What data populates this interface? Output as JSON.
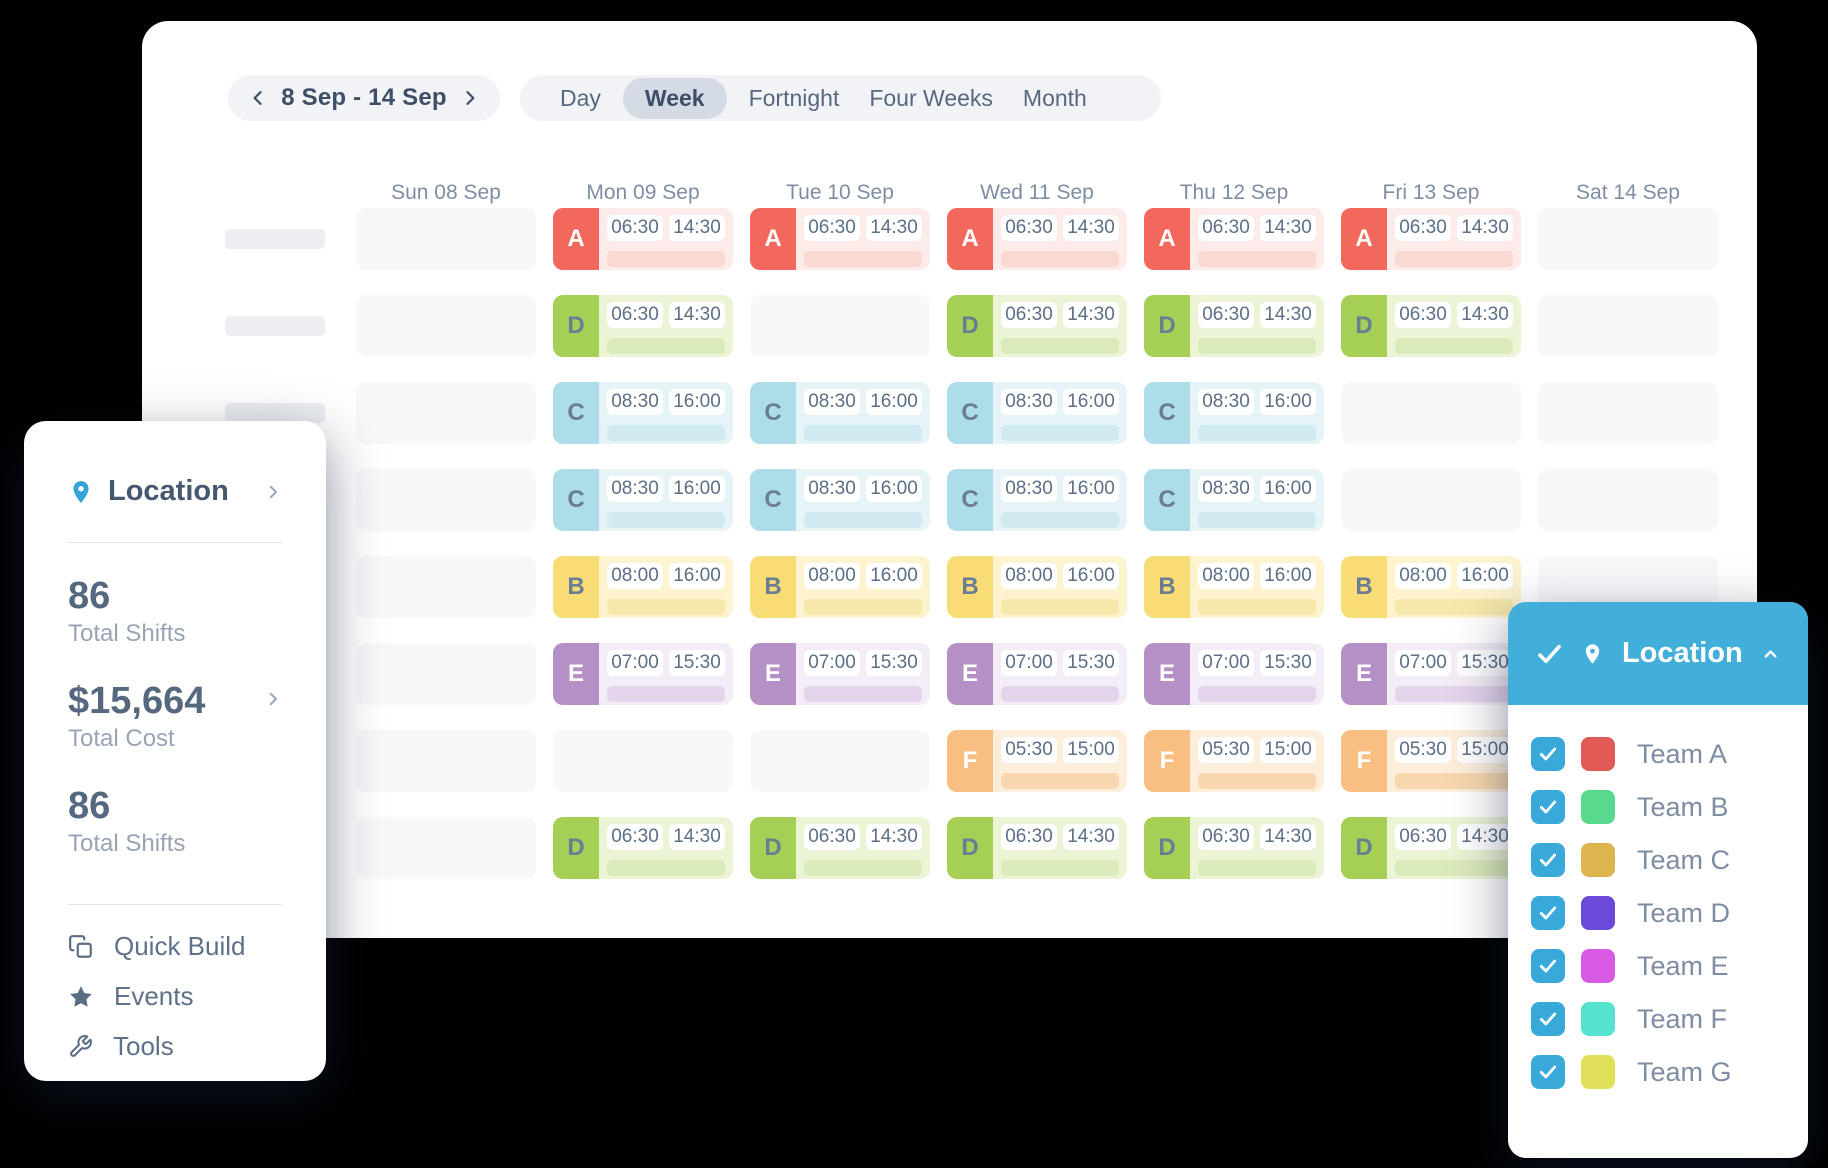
{
  "page": {
    "background": "#000000"
  },
  "main_card": {
    "date_nav": {
      "label": "8 Sep - 14 Sep"
    },
    "view_tabs": {
      "items": [
        "Day",
        "Week",
        "Fortnight",
        "Four Weeks",
        "Month"
      ],
      "selected": "Week"
    },
    "day_headers": [
      "Sun 08 Sep",
      "Mon 09 Sep",
      "Tue 10 Sep",
      "Wed 11 Sep",
      "Thu 12 Sep",
      "Fri 13 Sep",
      "Sat 14 Sep"
    ],
    "shift_styles": {
      "A": {
        "badge": "#f2685c",
        "letter": "#ffffff",
        "bg": "#fcebe8",
        "bar": "#f9d9d2"
      },
      "B": {
        "badge": "#f8dc75",
        "letter": "#6b7d92",
        "bg": "#fdf3cf",
        "bar": "#f6e8ab"
      },
      "C": {
        "badge": "#acdde9",
        "letter": "#6b7d92",
        "bg": "#e6f4f8",
        "bar": "#d0eaf1"
      },
      "D": {
        "badge": "#a6cf56",
        "letter": "#6b7d92",
        "bg": "#ebf4d5",
        "bar": "#dbeaba"
      },
      "E": {
        "badge": "#b590c6",
        "letter": "#ffffff",
        "bg": "#f4edf7",
        "bar": "#e4d4ec"
      },
      "F": {
        "badge": "#f9be81",
        "letter": "#ffffff",
        "bg": "#fdeedb",
        "bar": "#f8d7ae"
      }
    },
    "rows": [
      {
        "team": "A",
        "start": "06:30",
        "end": "14:30",
        "days": [
          0,
          1,
          1,
          1,
          1,
          1,
          0
        ]
      },
      {
        "team": "D",
        "start": "06:30",
        "end": "14:30",
        "days": [
          0,
          1,
          0,
          1,
          1,
          1,
          0
        ]
      },
      {
        "team": "C",
        "start": "08:30",
        "end": "16:00",
        "days": [
          0,
          1,
          1,
          1,
          1,
          0,
          0
        ]
      },
      {
        "team": "C",
        "start": "08:30",
        "end": "16:00",
        "days": [
          0,
          1,
          1,
          1,
          1,
          0,
          0
        ]
      },
      {
        "team": "B",
        "start": "08:00",
        "end": "16:00",
        "days": [
          0,
          1,
          1,
          1,
          1,
          1,
          0
        ]
      },
      {
        "team": "E",
        "start": "07:00",
        "end": "15:30",
        "days": [
          0,
          1,
          1,
          1,
          1,
          1,
          0
        ]
      },
      {
        "team": "F",
        "start": "05:30",
        "end": "15:00",
        "days": [
          0,
          0,
          0,
          1,
          1,
          1,
          0
        ]
      },
      {
        "team": "D",
        "start": "06:30",
        "end": "14:30",
        "days": [
          0,
          1,
          1,
          1,
          1,
          1,
          0
        ]
      }
    ]
  },
  "left_panel": {
    "header": {
      "label": "Location"
    },
    "pin_color": "#35a3d7",
    "stats": [
      {
        "value": "86",
        "label": "Total Shifts",
        "has_chevron": false
      },
      {
        "value": "$15,664",
        "label": "Total Cost",
        "has_chevron": true
      },
      {
        "value": "86",
        "label": "Total Shifts",
        "has_chevron": false
      }
    ],
    "menu": [
      {
        "icon": "copy-icon",
        "label": "Quick Build"
      },
      {
        "icon": "star-icon",
        "label": "Events"
      },
      {
        "icon": "wrench-icon",
        "label": "Tools"
      }
    ]
  },
  "right_panel": {
    "header": {
      "label": "Location",
      "color": "#42afdb"
    },
    "checkbox_color": "#39a9da",
    "teams": [
      {
        "name": "Team A",
        "color": "#e25a55",
        "checked": true
      },
      {
        "name": "Team B",
        "color": "#57da8d",
        "checked": true
      },
      {
        "name": "Team C",
        "color": "#dcb54e",
        "checked": true
      },
      {
        "name": "Team D",
        "color": "#6a4ad9",
        "checked": true
      },
      {
        "name": "Team E",
        "color": "#d95ae2",
        "checked": true
      },
      {
        "name": "Team F",
        "color": "#55e2cf",
        "checked": true
      },
      {
        "name": "Team G",
        "color": "#dfe058",
        "checked": true
      }
    ]
  }
}
